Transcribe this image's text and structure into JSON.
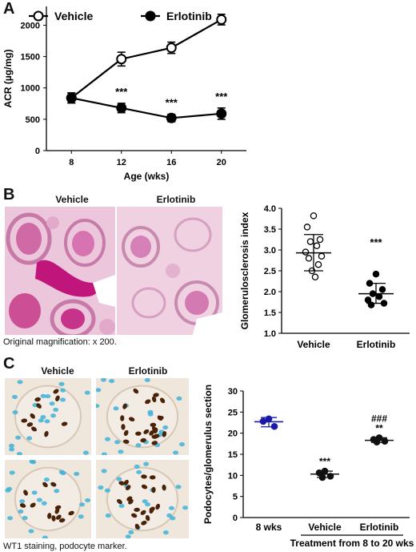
{
  "panels": {
    "a": {
      "letter": "A"
    },
    "b": {
      "letter": "B",
      "header_left": "Vehicle",
      "header_right": "Erlotinib",
      "caption": "Original magnification: x 200."
    },
    "c": {
      "letter": "C",
      "header_left": "Vehicle",
      "header_right": "Erlotinib",
      "caption": "WT1 staining, podocyte marker."
    }
  },
  "chart_data": [
    {
      "type": "line",
      "id": "acr",
      "xlabel": "Age (wks)",
      "ylabel": "ACR (µg/mg)",
      "x": [
        8,
        12,
        16,
        20
      ],
      "xticks": [
        "8",
        "12",
        "16",
        "20"
      ],
      "yticks": [
        0,
        500,
        1000,
        1500,
        2000
      ],
      "ylim": [
        0,
        2300
      ],
      "series": [
        {
          "name": "Vehicle",
          "marker": "open-circle",
          "values": [
            840,
            1460,
            1640,
            2090
          ],
          "errors": [
            80,
            110,
            90,
            85
          ]
        },
        {
          "name": "Erlotinib",
          "marker": "filled-circle",
          "values": [
            840,
            680,
            520,
            590
          ],
          "errors": [
            80,
            75,
            60,
            90
          ]
        }
      ],
      "annotations": [
        {
          "x": 12,
          "text": "***"
        },
        {
          "x": 16,
          "text": "***"
        },
        {
          "x": 20,
          "text": "***"
        }
      ],
      "legend": "top-left"
    },
    {
      "type": "scatter",
      "id": "glomerulosclerosis",
      "ylabel": "Glomerulosclerosis index",
      "categories": [
        "Vehicle",
        "Erlotinib"
      ],
      "yticks": [
        "1.0",
        "1.5",
        "2.0",
        "2.5",
        "3.0",
        "3.5",
        "4.0"
      ],
      "ylim": [
        1.0,
        4.0
      ],
      "series": [
        {
          "name": "Vehicle",
          "marker": "open-circle",
          "points": [
            3.82,
            3.55,
            3.25,
            3.2,
            3.1,
            2.95,
            2.85,
            2.8,
            2.65,
            2.5,
            2.35
          ],
          "mean": 2.93,
          "sd_low": 2.5,
          "sd_high": 3.37
        },
        {
          "name": "Erlotinib",
          "marker": "filled-circle",
          "points": [
            2.42,
            2.2,
            2.05,
            1.95,
            1.88,
            1.8,
            1.72,
            1.68
          ],
          "mean": 1.95,
          "sd_low": 1.72,
          "sd_high": 2.2
        }
      ],
      "annotations": [
        {
          "category": "Erlotinib",
          "text": "***"
        }
      ]
    },
    {
      "type": "scatter",
      "id": "podocytes",
      "ylabel": "Podocytes/glomerulus section",
      "categories": [
        "8 wks",
        "Vehicle",
        "Erlotinib"
      ],
      "yticks": [
        "0",
        "5",
        "10",
        "15",
        "20",
        "25",
        "30"
      ],
      "ylim": [
        0,
        30
      ],
      "bracket_label": "Treatment from 8 to 20 wks",
      "series": [
        {
          "name": "8 wks",
          "color": "#1a1aa8",
          "points": [
            23.4,
            22.8,
            21.6
          ],
          "mean": 22.7,
          "sd_low": 21.5,
          "sd_high": 23.7
        },
        {
          "name": "Vehicle",
          "color": "#111111",
          "points": [
            11.0,
            10.6,
            9.8,
            9.5
          ],
          "mean": 10.3,
          "sd_low": 9.5,
          "sd_high": 11.0
        },
        {
          "name": "Erlotinib",
          "color": "#111111",
          "points": [
            18.9,
            18.5,
            18.1,
            17.9
          ],
          "mean": 18.3,
          "sd_low": 17.8,
          "sd_high": 18.9
        }
      ],
      "annotations": [
        {
          "category": "Vehicle",
          "text": "***"
        },
        {
          "category": "Erlotinib",
          "text": "**"
        },
        {
          "category": "Erlotinib",
          "text": "###"
        }
      ]
    }
  ]
}
